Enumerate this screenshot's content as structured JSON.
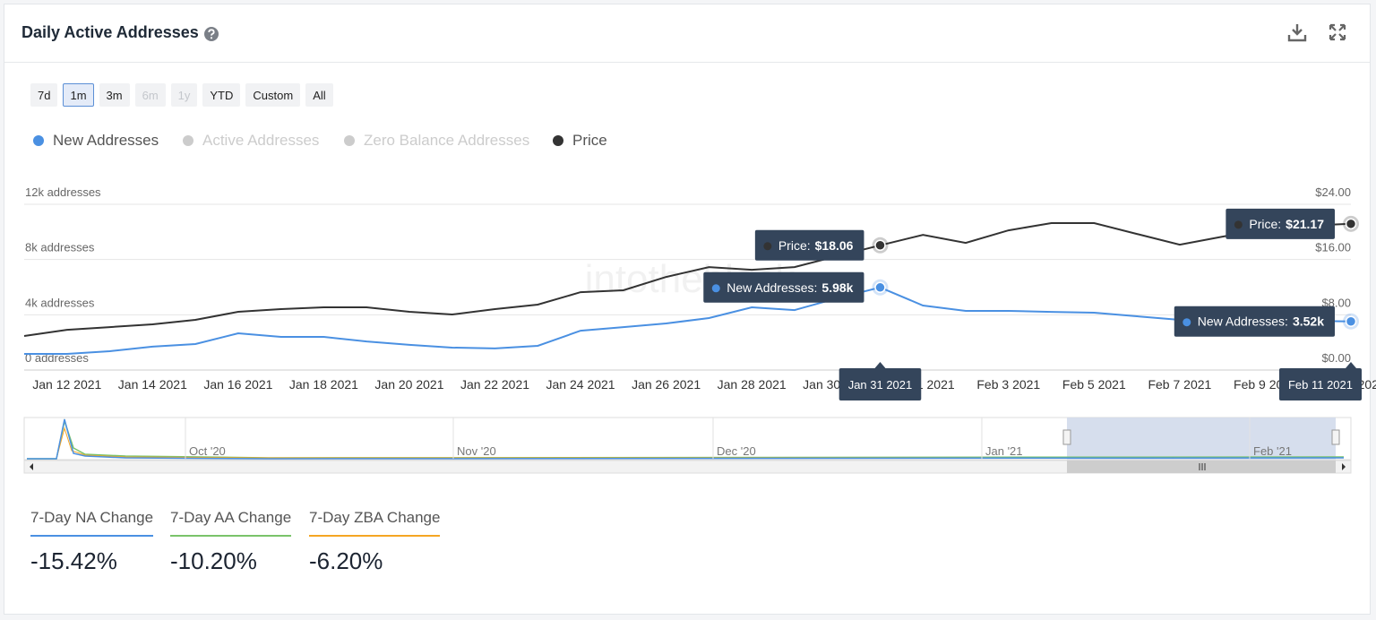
{
  "header": {
    "title": "Daily Active Addresses"
  },
  "range_buttons": {
    "options": [
      "7d",
      "1m",
      "3m",
      "6m",
      "1y",
      "YTD",
      "Custom",
      "All"
    ],
    "selected_index": 1,
    "disabled_indices": [
      3,
      4
    ]
  },
  "chart_data": {
    "type": "line",
    "watermark": "intotheblock",
    "x": [
      "Jan 11 2021",
      "Jan 12 2021",
      "Jan 13 2021",
      "Jan 14 2021",
      "Jan 15 2021",
      "Jan 16 2021",
      "Jan 17 2021",
      "Jan 18 2021",
      "Jan 19 2021",
      "Jan 20 2021",
      "Jan 21 2021",
      "Jan 22 2021",
      "Jan 23 2021",
      "Jan 24 2021",
      "Jan 25 2021",
      "Jan 26 2021",
      "Jan 27 2021",
      "Jan 28 2021",
      "Jan 29 2021",
      "Jan 30 2021",
      "Jan 31 2021",
      "Feb 1 2021",
      "Feb 2 2021",
      "Feb 3 2021",
      "Feb 4 2021",
      "Feb 5 2021",
      "Feb 6 2021",
      "Feb 7 2021",
      "Feb 8 2021",
      "Feb 9 2021",
      "Feb 10 2021",
      "Feb 11 2021"
    ],
    "series": [
      {
        "name": "New Addresses",
        "tooltip_name": "New Addresses:",
        "color": "#4a90e2",
        "values": [
          1170,
          1170,
          1360,
          1690,
          1880,
          2660,
          2400,
          2400,
          2070,
          1820,
          1620,
          1560,
          1750,
          2850,
          3110,
          3370,
          3760,
          4540,
          4340,
          5200,
          5980,
          4670,
          4280,
          4280,
          4210,
          4150,
          3890,
          3630,
          3600,
          3580,
          3560,
          3520
        ],
        "value_labels": [
          null,
          null,
          null,
          null,
          null,
          null,
          null,
          null,
          null,
          null,
          null,
          null,
          null,
          null,
          null,
          null,
          null,
          null,
          null,
          null,
          "5.98k",
          null,
          null,
          null,
          null,
          null,
          null,
          null,
          null,
          null,
          null,
          "3.52k"
        ]
      },
      {
        "name": "Price",
        "tooltip_name": "Price:",
        "color": "#333333",
        "axis": "y2",
        "values": [
          4.93,
          5.83,
          6.22,
          6.61,
          7.26,
          8.43,
          8.82,
          9.08,
          9.08,
          8.43,
          8.04,
          8.82,
          9.47,
          11.28,
          11.54,
          13.48,
          14.91,
          14.52,
          14.91,
          16.5,
          18.06,
          19.57,
          18.41,
          20.23,
          21.27,
          21.27,
          19.71,
          18.15,
          19.32,
          20.4,
          20.9,
          21.17
        ],
        "value_labels": [
          null,
          null,
          null,
          null,
          null,
          null,
          null,
          null,
          null,
          null,
          null,
          null,
          null,
          null,
          null,
          null,
          null,
          null,
          null,
          null,
          "$18.06",
          null,
          null,
          null,
          null,
          null,
          null,
          null,
          null,
          null,
          null,
          "$21.17"
        ]
      }
    ],
    "hidden_series": [
      {
        "name": "Active Addresses",
        "color": "#cccccc"
      },
      {
        "name": "Zero Balance Addresses",
        "color": "#cccccc"
      }
    ],
    "ylim": [
      0,
      12000
    ],
    "yticks": [
      {
        "value": 0,
        "label": "0 addresses"
      },
      {
        "value": 4000,
        "label": "4k addresses"
      },
      {
        "value": 8000,
        "label": "8k addresses"
      },
      {
        "value": 12000,
        "label": "12k addresses"
      }
    ],
    "y2lim": [
      0,
      24
    ],
    "y2ticks": [
      {
        "value": 0,
        "label": "$0.00"
      },
      {
        "value": 8,
        "label": "$8.00"
      },
      {
        "value": 16,
        "label": "$16.00"
      },
      {
        "value": 24,
        "label": "$24.00"
      }
    ],
    "grid": true
  },
  "navigator": {
    "labels": [
      "Oct '20",
      "Nov '20",
      "Dec '20",
      "Jan '21",
      "Feb '21"
    ]
  },
  "stats": [
    {
      "label": "7-Day NA Change",
      "value": "-15.42%",
      "color": "#4a90e2"
    },
    {
      "label": "7-Day AA Change",
      "value": "-10.20%",
      "color": "#7ac36a"
    },
    {
      "label": "7-Day ZBA Change",
      "value": "-6.20%",
      "color": "#f5a623"
    }
  ]
}
